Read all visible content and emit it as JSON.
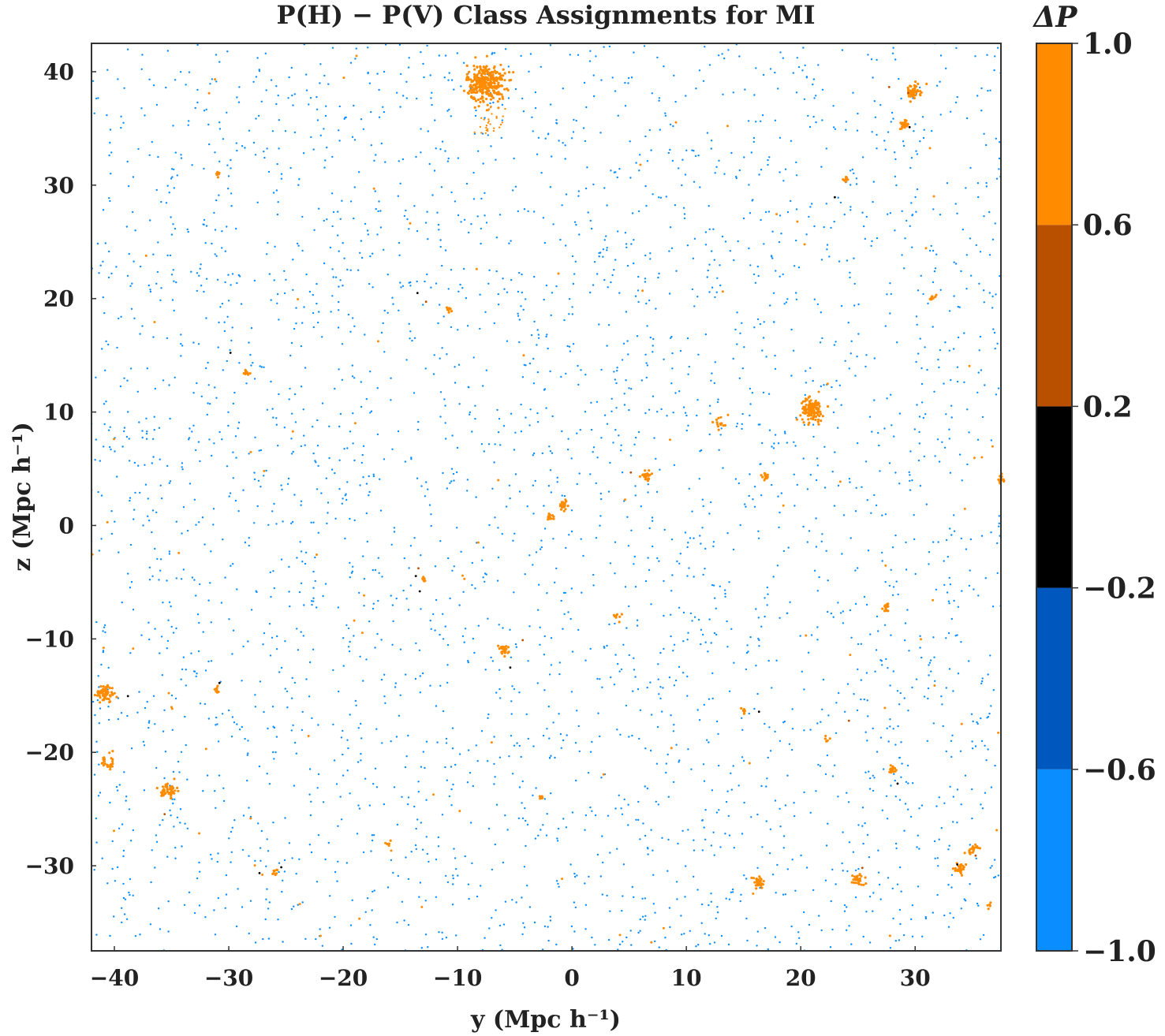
{
  "chart_data": {
    "type": "scatter",
    "title": "P(H) − P(V) Class Assignments for MI",
    "xlabel": "y (Mpc h⁻¹)",
    "ylabel": "z (Mpc h⁻¹)",
    "xlim": [
      -42,
      37.5
    ],
    "ylim": [
      -37.5,
      42.5
    ],
    "xticks": [
      -40,
      -30,
      -20,
      -10,
      0,
      10,
      20,
      30
    ],
    "xtick_labels": [
      "−40",
      "−30",
      "−20",
      "−10",
      "0",
      "10",
      "20",
      "30"
    ],
    "yticks": [
      -30,
      -20,
      -10,
      0,
      10,
      20,
      30,
      40
    ],
    "ytick_labels": [
      "−30",
      "−20",
      "−10",
      "0",
      "10",
      "20",
      "30",
      "40"
    ],
    "grid": false,
    "colorbar": {
      "title": "ΔP",
      "range": [
        -1.0,
        1.0
      ],
      "boundaries": [
        -1.0,
        -0.6,
        -0.2,
        0.2,
        0.6,
        1.0
      ],
      "tick_labels": [
        "−1.0",
        "−0.6",
        "−0.2",
        "0.2",
        "0.6",
        "1.0"
      ],
      "colors": [
        "#0a8dff",
        "#0057bd",
        "#000000",
        "#b85000",
        "#ff8c00"
      ]
    },
    "series": [
      {
        "class": "ΔP between −1.0 and −0.6",
        "color": "#0a8dff",
        "marker_size": 1.2,
        "density_per_100sq": 5.5,
        "extent": "uniform field"
      },
      {
        "class": "ΔP between 0.6 and 1.0",
        "color": "#ff8c00",
        "clusters": [
          {
            "x": -7.5,
            "y": 39.0,
            "r": 1.5,
            "n": 320
          },
          {
            "x": 21.0,
            "y": 10.2,
            "r": 0.9,
            "n": 120
          },
          {
            "x": -40.8,
            "y": -14.8,
            "r": 0.7,
            "n": 70
          },
          {
            "x": -35.2,
            "y": -23.3,
            "r": 0.6,
            "n": 55
          },
          {
            "x": 29.8,
            "y": 38.2,
            "r": 0.6,
            "n": 50
          },
          {
            "x": 16.3,
            "y": -31.5,
            "r": 0.5,
            "n": 40
          },
          {
            "x": 25.0,
            "y": -31.2,
            "r": 0.5,
            "n": 32
          },
          {
            "x": 34.0,
            "y": -30.3,
            "r": 0.4,
            "n": 28
          },
          {
            "x": 35.0,
            "y": -28.5,
            "r": 0.4,
            "n": 22
          },
          {
            "x": 29.0,
            "y": 35.3,
            "r": 0.4,
            "n": 24
          },
          {
            "x": -0.7,
            "y": 1.8,
            "r": 0.4,
            "n": 28
          },
          {
            "x": 6.5,
            "y": 4.4,
            "r": 0.4,
            "n": 26
          },
          {
            "x": -6.0,
            "y": -11.0,
            "r": 0.4,
            "n": 26
          },
          {
            "x": 28.0,
            "y": -21.5,
            "r": 0.3,
            "n": 18
          },
          {
            "x": 27.5,
            "y": -7.2,
            "r": 0.3,
            "n": 16
          },
          {
            "x": 17.0,
            "y": 4.3,
            "r": 0.3,
            "n": 14
          },
          {
            "x": -31.0,
            "y": 31.0,
            "r": 0.3,
            "n": 12
          },
          {
            "x": -28.5,
            "y": 13.5,
            "r": 0.3,
            "n": 12
          },
          {
            "x": -10.8,
            "y": 19.0,
            "r": 0.3,
            "n": 12
          },
          {
            "x": 37.5,
            "y": 4.0,
            "r": 0.4,
            "n": 18
          },
          {
            "x": -2.0,
            "y": 0.7,
            "r": 0.3,
            "n": 12
          },
          {
            "x": 24.0,
            "y": 30.5,
            "r": 0.25,
            "n": 10
          },
          {
            "x": -40.5,
            "y": -20.8,
            "r": 0.8,
            "n": 25
          },
          {
            "x": 13.0,
            "y": 9.0,
            "r": 0.6,
            "n": 14
          },
          {
            "x": -31.0,
            "y": -14.5,
            "r": 0.25,
            "n": 9
          },
          {
            "x": -26.0,
            "y": -30.5,
            "r": 0.25,
            "n": 9
          },
          {
            "x": 31.5,
            "y": 20.0,
            "r": 0.3,
            "n": 9
          },
          {
            "x": -13.0,
            "y": -4.8,
            "r": 0.25,
            "n": 8
          },
          {
            "x": 4.0,
            "y": -8.0,
            "r": 0.3,
            "n": 8
          },
          {
            "x": 15.0,
            "y": -16.3,
            "r": 0.25,
            "n": 8
          },
          {
            "x": 22.3,
            "y": -18.8,
            "r": 0.2,
            "n": 6
          },
          {
            "x": -2.7,
            "y": -24.0,
            "r": 0.2,
            "n": 6
          },
          {
            "x": -16.0,
            "y": -28.0,
            "r": 0.25,
            "n": 6
          },
          {
            "x": 36.5,
            "y": -33.5,
            "r": 0.2,
            "n": 5
          }
        ],
        "scattered_points": 90
      },
      {
        "class": "ΔP between 0.2 and 0.6",
        "color": "#b85000",
        "scattered_points": 10
      },
      {
        "class": "ΔP between −0.2 and 0.2",
        "color": "#000000",
        "scattered_points": 14
      }
    ]
  }
}
